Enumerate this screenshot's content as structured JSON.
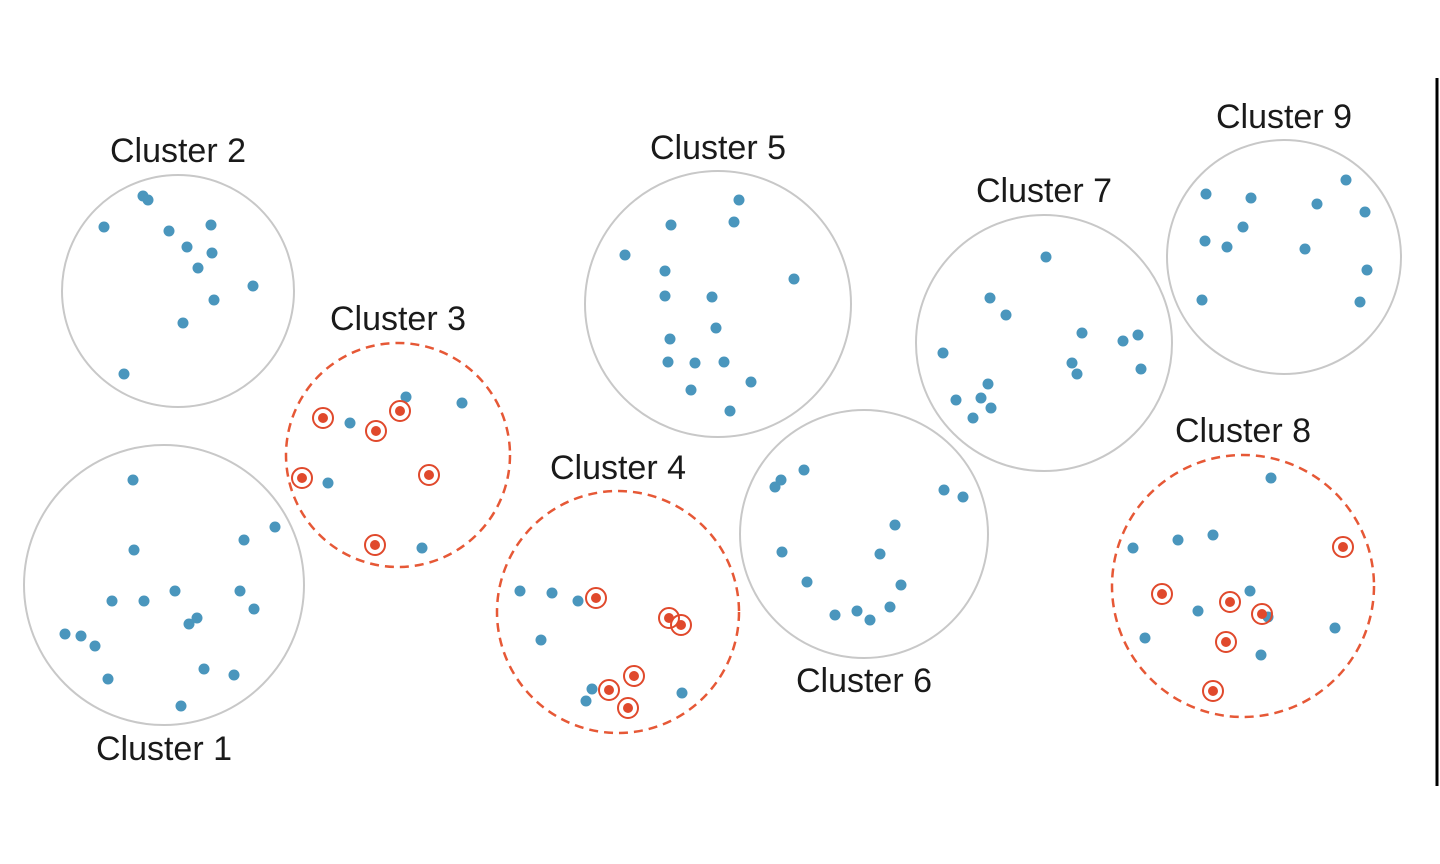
{
  "diagram": {
    "colors": {
      "point": "#4a96bd",
      "sampled_point": "#e0492c",
      "sampled_ring": "#e0492c",
      "cluster_outline": "#c8c8c8",
      "sampled_cluster_outline": "#e65836",
      "label_text": "#1a1a1a",
      "divider": "#000000"
    },
    "clusters": [
      {
        "id": "cluster-1",
        "label": "Cluster 1",
        "sampled": false
      },
      {
        "id": "cluster-2",
        "label": "Cluster 2",
        "sampled": false
      },
      {
        "id": "cluster-3",
        "label": "Cluster 3",
        "sampled": true
      },
      {
        "id": "cluster-4",
        "label": "Cluster 4",
        "sampled": true
      },
      {
        "id": "cluster-5",
        "label": "Cluster 5",
        "sampled": false
      },
      {
        "id": "cluster-6",
        "label": "Cluster 6",
        "sampled": false
      },
      {
        "id": "cluster-7",
        "label": "Cluster 7",
        "sampled": false
      },
      {
        "id": "cluster-8",
        "label": "Cluster 8",
        "sampled": true
      },
      {
        "id": "cluster-9",
        "label": "Cluster 9",
        "sampled": false
      }
    ]
  }
}
